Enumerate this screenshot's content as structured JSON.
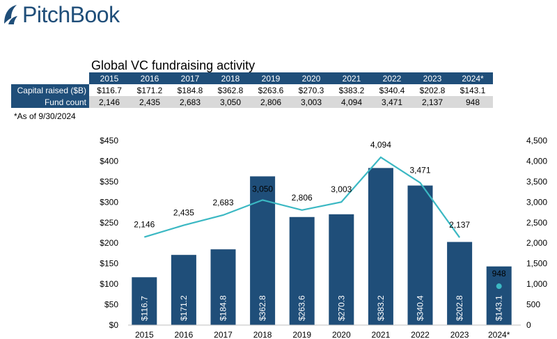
{
  "brand": {
    "name": "PitchBook",
    "color": "#1f4e79"
  },
  "table": {
    "title": "Global VC fundraising activity",
    "years": [
      "2015",
      "2016",
      "2017",
      "2018",
      "2019",
      "2020",
      "2021",
      "2022",
      "2023",
      "2024*"
    ],
    "rows": [
      {
        "label": "Capital raised ($B)",
        "values": [
          "$116.7",
          "$171.2",
          "$184.8",
          "$362.8",
          "$263.6",
          "$270.3",
          "$383.2",
          "$340.4",
          "$202.8",
          "$143.1"
        ]
      },
      {
        "label": "Fund count",
        "values": [
          "2,146",
          "2,435",
          "2,683",
          "3,050",
          "2,806",
          "3,003",
          "4,094",
          "3,471",
          "2,137",
          "948"
        ]
      }
    ],
    "note": "*As of 9/30/2024"
  },
  "chart_data": {
    "type": "bar",
    "categories": [
      "2015",
      "2016",
      "2017",
      "2018",
      "2019",
      "2020",
      "2021",
      "2022",
      "2023",
      "2024*"
    ],
    "series": [
      {
        "name": "Capital raised ($B)",
        "type": "bar",
        "axis": "left",
        "color": "#1f4e79",
        "values": [
          116.7,
          171.2,
          184.8,
          362.8,
          263.6,
          270.3,
          383.2,
          340.4,
          202.8,
          143.1
        ],
        "labels": [
          "$116.7",
          "$171.2",
          "$184.8",
          "$362.8",
          "$263.6",
          "$270.3",
          "$383.2",
          "$340.4",
          "$202.8",
          "$143.1"
        ]
      },
      {
        "name": "Fund count",
        "type": "line",
        "axis": "right",
        "color": "#3bb8c3",
        "values": [
          2146,
          2435,
          2683,
          3050,
          2806,
          3003,
          4094,
          3471,
          2137,
          948
        ],
        "labels": [
          "2,146",
          "2,435",
          "2,683",
          "3,050",
          "2,806",
          "3,003",
          "4,094",
          "3,471",
          "2,137",
          "948"
        ],
        "line_break_before_last": true
      }
    ],
    "left_axis": {
      "min": 0,
      "max": 450,
      "step": 50,
      "ticks": [
        "$0",
        "$50",
        "$100",
        "$150",
        "$200",
        "$250",
        "$300",
        "$350",
        "$400",
        "$450"
      ]
    },
    "right_axis": {
      "min": 0,
      "max": 4500,
      "step": 500,
      "ticks": [
        "0",
        "500",
        "1,000",
        "1,500",
        "2,000",
        "2,500",
        "3,000",
        "3,500",
        "4,000",
        "4,500"
      ]
    },
    "grid": false,
    "legend": "none"
  }
}
